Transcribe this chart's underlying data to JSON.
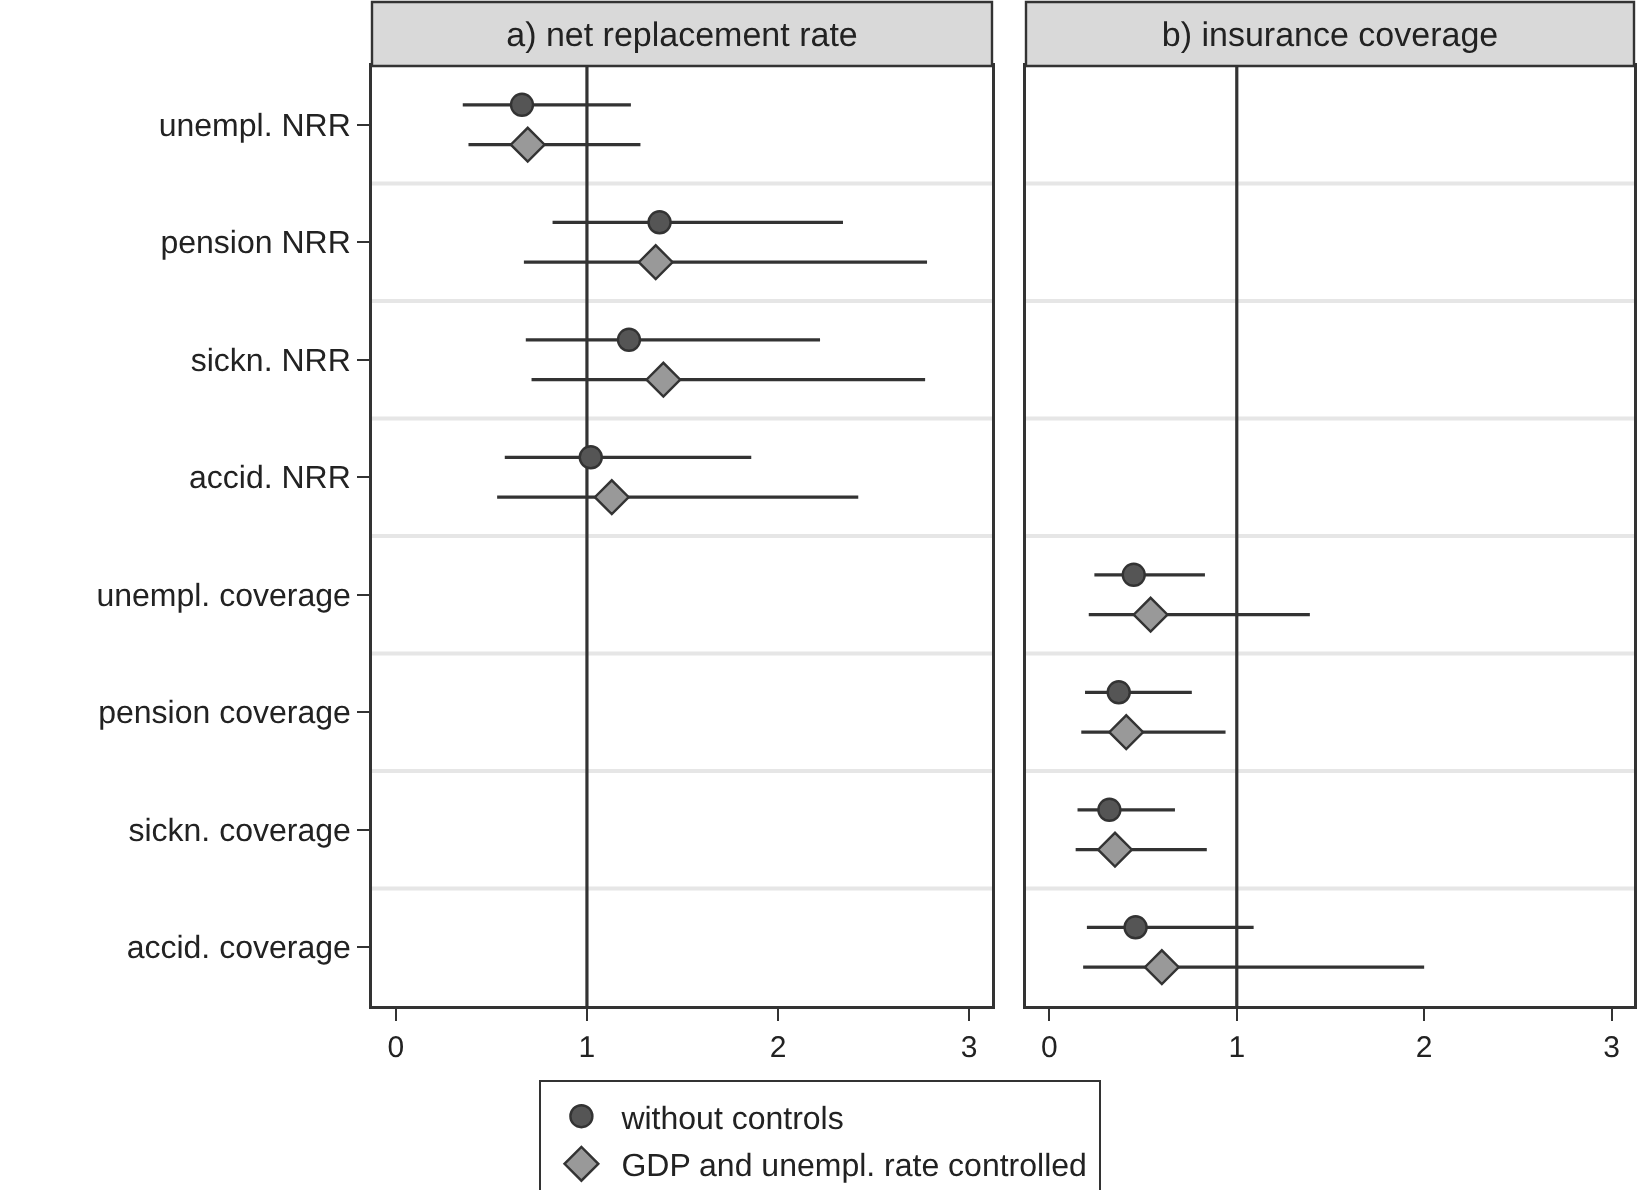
{
  "chart_data": [
    {
      "type": "scatter",
      "title": "a) net replacement rate",
      "orientation": "horizontal",
      "categories": [
        "unempl. NRR",
        "pension NRR",
        "sickn. NRR",
        "accid. NRR",
        "unempl. coverage",
        "pension coverage",
        "sickn. coverage",
        "accid. coverage"
      ],
      "series": [
        {
          "name": "without controls",
          "color": "#555555",
          "marker": "circle",
          "values": [
            0.66,
            1.38,
            1.22,
            1.02,
            null,
            null,
            null,
            null
          ],
          "errors": [
            [
              0.35,
              1.23
            ],
            [
              0.82,
              2.34
            ],
            [
              0.68,
              2.22
            ],
            [
              0.57,
              1.86
            ],
            null,
            null,
            null,
            null
          ]
        },
        {
          "name": "GDP and unempl. rate controlled",
          "color": "#999999",
          "marker": "diamond",
          "values": [
            0.69,
            1.36,
            1.4,
            1.13,
            null,
            null,
            null,
            null
          ],
          "errors": [
            [
              0.38,
              1.28
            ],
            [
              0.67,
              2.78
            ],
            [
              0.71,
              2.77
            ],
            [
              0.53,
              2.42
            ],
            null,
            null,
            null,
            null
          ]
        }
      ],
      "xlim": [
        -0.125,
        3.12
      ],
      "xticks": [
        0,
        1,
        2,
        3
      ],
      "ref_lines": [
        {
          "axis": "x",
          "value": 1,
          "color": "#333333"
        }
      ],
      "grid": "y",
      "legend": "bottom"
    },
    {
      "type": "scatter",
      "title": "b) insurance coverage",
      "orientation": "horizontal",
      "categories": [
        null,
        null,
        null,
        null,
        null,
        null,
        null,
        null
      ],
      "series": [
        {
          "color": "#555555",
          "marker": "circle",
          "values": [
            null,
            null,
            null,
            null,
            0.45,
            0.37,
            0.32,
            0.46
          ],
          "errors": [
            null,
            null,
            null,
            null,
            [
              0.24,
              0.83
            ],
            [
              0.19,
              0.76
            ],
            [
              0.15,
              0.67
            ],
            [
              0.2,
              1.09
            ]
          ]
        },
        {
          "color": "#999999",
          "marker": "diamond",
          "values": [
            null,
            null,
            null,
            null,
            0.54,
            0.41,
            0.35,
            0.6
          ],
          "errors": [
            null,
            null,
            null,
            null,
            [
              0.21,
              1.39
            ],
            [
              0.17,
              0.94
            ],
            [
              0.14,
              0.84
            ],
            [
              0.18,
              2.0
            ]
          ]
        }
      ],
      "xlim": [
        -0.125,
        3.12
      ],
      "xticks": [
        0,
        1,
        2,
        3
      ],
      "ref_lines": [
        {
          "axis": "x",
          "value": 1,
          "color": "#333333"
        }
      ],
      "grid": "y",
      "tick_labels": "x"
    }
  ]
}
